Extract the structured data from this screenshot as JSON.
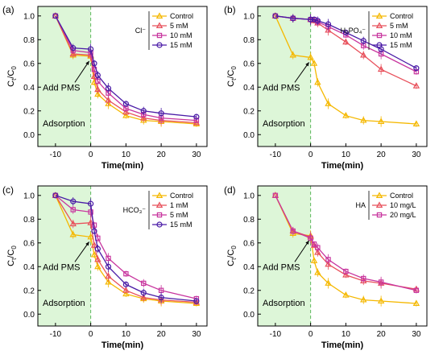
{
  "colors": {
    "control": "#F5B800",
    "s1": "#E8505B",
    "s2": "#C8359E",
    "s3": "#4A1BA6",
    "shade": "#DDF6D8",
    "dash": "#5FB85F"
  },
  "chart_data": [
    {
      "type": "line",
      "panel_label": "(a)",
      "xlabel": "Time(min)",
      "ylabel": "Ct/C0",
      "xlim": [
        -15,
        33
      ],
      "ylim": [
        -0.1,
        1.08
      ],
      "xticks": [
        -10,
        0,
        10,
        20,
        30
      ],
      "yticks": [
        0.0,
        0.2,
        0.4,
        0.6,
        0.8,
        1.0
      ],
      "legend_title": "Cl⁻",
      "legend_position": "top-right",
      "annotations": [
        "Add PMS",
        "Adsorption"
      ],
      "x": [
        -10,
        -5,
        0,
        1,
        2,
        5,
        10,
        15,
        20,
        30
      ],
      "series": [
        {
          "name": "Control",
          "values": [
            1.0,
            0.67,
            0.66,
            0.44,
            0.34,
            0.26,
            0.16,
            0.12,
            0.11,
            0.09
          ]
        },
        {
          "name": "5 mM",
          "values": [
            1.0,
            0.68,
            0.67,
            0.49,
            0.38,
            0.29,
            0.19,
            0.14,
            0.12,
            0.1
          ]
        },
        {
          "name": "10 mM",
          "values": [
            1.0,
            0.71,
            0.69,
            0.55,
            0.45,
            0.35,
            0.22,
            0.17,
            0.14,
            0.12
          ]
        },
        {
          "name": "15 mM",
          "values": [
            1.0,
            0.73,
            0.72,
            0.6,
            0.5,
            0.39,
            0.26,
            0.2,
            0.18,
            0.15
          ]
        }
      ]
    },
    {
      "type": "line",
      "panel_label": "(b)",
      "xlabel": "Time(min)",
      "ylabel": "Ct/C0",
      "xlim": [
        -15,
        33
      ],
      "ylim": [
        -0.1,
        1.08
      ],
      "xticks": [
        -10,
        0,
        10,
        20,
        30
      ],
      "yticks": [
        0.0,
        0.2,
        0.4,
        0.6,
        0.8,
        1.0
      ],
      "legend_title": "H₂PO₄⁻",
      "legend_position": "top-right",
      "annotations": [
        "Add PMS",
        "Adsorption"
      ],
      "x": [
        -10,
        -5,
        0,
        1,
        2,
        5,
        10,
        15,
        20,
        30
      ],
      "series": [
        {
          "name": "Control",
          "values": [
            1.0,
            0.67,
            0.65,
            0.6,
            0.44,
            0.26,
            0.16,
            0.12,
            0.11,
            0.09
          ]
        },
        {
          "name": "5 mM",
          "values": [
            1.0,
            0.98,
            0.97,
            0.96,
            0.94,
            0.88,
            0.78,
            0.67,
            0.55,
            0.41
          ]
        },
        {
          "name": "10 mM",
          "values": [
            1.0,
            0.98,
            0.97,
            0.97,
            0.95,
            0.91,
            0.84,
            0.75,
            0.68,
            0.53
          ]
        },
        {
          "name": "15 mM",
          "values": [
            1.0,
            0.98,
            0.97,
            0.97,
            0.96,
            0.93,
            0.86,
            0.79,
            0.72,
            0.56
          ]
        }
      ]
    },
    {
      "type": "line",
      "panel_label": "(c)",
      "xlabel": "Time(min)",
      "ylabel": "Ct/C0",
      "xlim": [
        -15,
        33
      ],
      "ylim": [
        -0.1,
        1.08
      ],
      "xticks": [
        -10,
        0,
        10,
        20,
        30
      ],
      "yticks": [
        0.0,
        0.2,
        0.4,
        0.6,
        0.8,
        1.0
      ],
      "legend_title": "HCO₃⁻",
      "legend_position": "top-right",
      "annotations": [
        "Add PMS",
        "Adsorption"
      ],
      "x": [
        -10,
        -5,
        0,
        1,
        2,
        5,
        10,
        15,
        20,
        30
      ],
      "series": [
        {
          "name": "Control",
          "values": [
            1.0,
            0.67,
            0.65,
            0.5,
            0.4,
            0.27,
            0.17,
            0.13,
            0.11,
            0.09
          ]
        },
        {
          "name": "1 mM",
          "values": [
            1.0,
            0.76,
            0.77,
            0.58,
            0.46,
            0.32,
            0.2,
            0.14,
            0.12,
            0.1
          ]
        },
        {
          "name": "5 mM",
          "values": [
            1.0,
            0.88,
            0.86,
            0.75,
            0.64,
            0.47,
            0.34,
            0.26,
            0.2,
            0.13
          ]
        },
        {
          "name": "15 mM",
          "values": [
            1.0,
            0.95,
            0.93,
            0.7,
            0.55,
            0.4,
            0.25,
            0.18,
            0.14,
            0.11
          ]
        }
      ]
    },
    {
      "type": "line",
      "panel_label": "(d)",
      "xlabel": "Time(min)",
      "ylabel": "Ct/C0",
      "xlim": [
        -15,
        33
      ],
      "ylim": [
        -0.1,
        1.08
      ],
      "xticks": [
        -10,
        0,
        10,
        20,
        30
      ],
      "yticks": [
        0.0,
        0.2,
        0.4,
        0.6,
        0.8,
        1.0
      ],
      "legend_title": "HA",
      "legend_position": "top-right",
      "annotations": [
        "Add PMS",
        "Adsorption"
      ],
      "x": [
        -10,
        -5,
        0,
        1,
        2,
        5,
        10,
        15,
        20,
        30
      ],
      "series": [
        {
          "name": "Control",
          "values": [
            1.0,
            0.68,
            0.66,
            0.45,
            0.35,
            0.26,
            0.16,
            0.12,
            0.11,
            0.09
          ]
        },
        {
          "name": "10 mg/L",
          "values": [
            1.0,
            0.7,
            0.65,
            0.58,
            0.52,
            0.42,
            0.33,
            0.28,
            0.26,
            0.21
          ]
        },
        {
          "name": "20 mg/L",
          "values": [
            1.0,
            0.7,
            0.64,
            0.59,
            0.56,
            0.46,
            0.36,
            0.3,
            0.27,
            0.2
          ]
        }
      ]
    }
  ]
}
